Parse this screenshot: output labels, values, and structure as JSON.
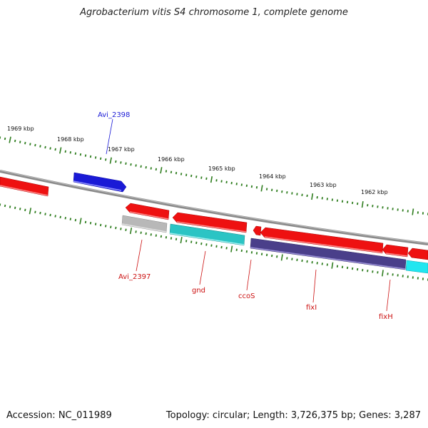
{
  "title": "Agrobacterium vitis S4 chromosome 1, complete genome",
  "footer": {
    "accession": "Accession: NC_011989",
    "stats": "Topology: circular; Length: 3,726,375 bp; Genes: 3,287"
  },
  "scale": {
    "unit": "kbp",
    "ticks": [
      "1969 kbp",
      "1968 kbp",
      "1967 kbp",
      "1966 kbp",
      "1965 kbp",
      "1964 kbp",
      "1963 kbp",
      "1962 kbp"
    ]
  },
  "colors": {
    "backbone": "#8a8a8a",
    "tick": "#2e7d1e",
    "gene_red": "#ee1111",
    "gene_blue": "#1a1ad6",
    "gene_gray": "#b8b8b8",
    "gene_teal": "#2bc4c4",
    "gene_purple": "#4a3f8a",
    "gene_cyan": "#21e6f0",
    "label_blue": "#1a1ad6",
    "label_red": "#cc1111"
  },
  "genes": [
    {
      "id": "g-left-red",
      "color": "gene_red",
      "strand": "+",
      "label": ""
    },
    {
      "id": "g-avi2398",
      "color": "gene_blue",
      "strand": "+",
      "label": "Avi_2398"
    },
    {
      "id": "g-red-a",
      "color": "gene_red",
      "strand": "-",
      "label": ""
    },
    {
      "id": "g-red-b",
      "color": "gene_red",
      "strand": "-",
      "label": ""
    },
    {
      "id": "g-red-c",
      "color": "gene_red",
      "strand": "-",
      "label": ""
    },
    {
      "id": "g-red-d",
      "color": "gene_red",
      "strand": "-",
      "label": ""
    },
    {
      "id": "g-red-e",
      "color": "gene_red",
      "strand": "-",
      "label": ""
    },
    {
      "id": "g-red-f",
      "color": "gene_red",
      "strand": "-",
      "label": ""
    },
    {
      "id": "g-avi2397",
      "color": "gene_gray",
      "strand": "-",
      "label": "Avi_2397"
    },
    {
      "id": "g-gnd",
      "color": "gene_teal",
      "strand": "-",
      "label": "gnd"
    },
    {
      "id": "g-ccos",
      "color": "gene_purple",
      "strand": "-",
      "label": "ccoS"
    },
    {
      "id": "g-fixi",
      "color": "gene_purple",
      "strand": "-",
      "label": "fixI"
    },
    {
      "id": "g-fixh",
      "color": "gene_cyan",
      "strand": "-",
      "label": "fixH"
    }
  ]
}
